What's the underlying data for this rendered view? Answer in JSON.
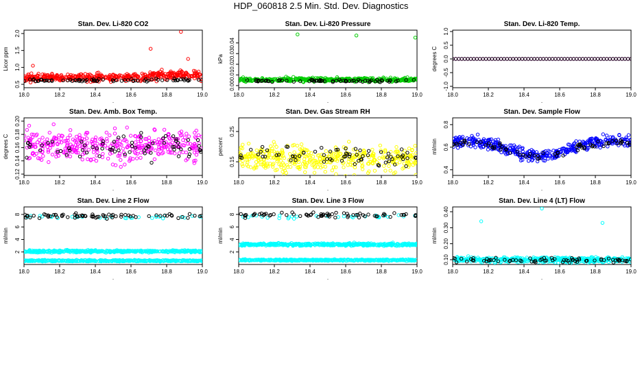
{
  "figure": {
    "title": "HDP_060818  2.5 Min. Std. Dev. Diagnostics",
    "x_range": [
      18.0,
      19.0
    ],
    "x_ticks": [
      "18.0",
      "18.2",
      "18.4",
      "18.6",
      "18.8",
      "19.0"
    ],
    "x_tick_values": [
      18.0,
      18.2,
      18.4,
      18.6,
      18.8,
      19.0
    ],
    "xlabel": "."
  },
  "colors": {
    "black": "#000000",
    "red": "#ff0000",
    "green": "#00cc00",
    "magenta": "#ff00ff",
    "yellow": "#ffff00",
    "blue": "#0000ff",
    "cyan": "#00ffff"
  },
  "chart_data": [
    {
      "type": "scatter",
      "title": "Stan. Dev. Li-820 CO2",
      "ylabel": "Licor ppm",
      "ylim": [
        0.4,
        2.1
      ],
      "yticks": [
        "0.5",
        "1.0",
        "1.5",
        "2.0"
      ],
      "ytick_values": [
        0.5,
        1.0,
        1.5,
        2.0
      ],
      "series": [
        {
          "name": "primary",
          "color": "red",
          "pattern": "noisy",
          "n": 420,
          "base": 0.7,
          "spread": 0.18,
          "step": {
            "at": 18.7,
            "add": 0.12
          },
          "outliers": [
            [
              18.88,
              2.05
            ],
            [
              18.71,
              1.55
            ],
            [
              18.05,
              1.05
            ],
            [
              18.92,
              1.25
            ]
          ]
        },
        {
          "name": "reference",
          "color": "black",
          "pattern": "noisy",
          "n": 70,
          "base": 0.62,
          "spread": 0.08
        }
      ]
    },
    {
      "type": "scatter",
      "title": "Stan. Dev. Li-820 Pressure",
      "ylabel": "kPa",
      "ylim": [
        -0.002,
        0.052
      ],
      "yticks": [
        "0.00",
        "0.01",
        "0.02",
        "0.03",
        "0.04"
      ],
      "ytick_values": [
        0.0,
        0.01,
        0.02,
        0.03,
        0.04
      ],
      "series": [
        {
          "name": "primary",
          "color": "green",
          "pattern": "noisy",
          "n": 420,
          "base": 0.0055,
          "spread": 0.003,
          "outliers": [
            [
              18.33,
              0.048
            ],
            [
              18.66,
              0.047
            ],
            [
              18.99,
              0.045
            ]
          ]
        },
        {
          "name": "reference",
          "color": "black",
          "pattern": "noisy",
          "n": 70,
          "base": 0.0045,
          "spread": 0.002
        }
      ]
    },
    {
      "type": "scatter",
      "title": "Stan. Dev. Li-820 Temp.",
      "ylabel": "degrees C",
      "ylim": [
        -1.05,
        1.05
      ],
      "yticks": [
        "-1.0",
        "-0.5",
        "0.0",
        "0.5",
        "1.0"
      ],
      "ytick_values": [
        -1.0,
        -0.5,
        0.0,
        0.5,
        1.0
      ],
      "series": [
        {
          "name": "primary",
          "color": "magenta",
          "pattern": "constant",
          "n": 60,
          "base": 0.0,
          "spread": 0.0
        },
        {
          "name": "reference",
          "color": "black",
          "pattern": "constant",
          "n": 60,
          "base": 0.0,
          "spread": 0.0
        }
      ]
    },
    {
      "type": "scatter",
      "title": "Stan. Dev. Amb. Box Temp.",
      "ylabel": "degrees C",
      "ylim": [
        0.118,
        0.205
      ],
      "yticks": [
        "0.12",
        "0.14",
        "0.16",
        "0.18",
        "0.20"
      ],
      "ytick_values": [
        0.12,
        0.14,
        0.16,
        0.18,
        0.2
      ],
      "series": [
        {
          "name": "primary",
          "color": "magenta",
          "pattern": "noisy",
          "n": 380,
          "base": 0.163,
          "spread": 0.04
        },
        {
          "name": "reference",
          "color": "black",
          "pattern": "noisy",
          "n": 70,
          "base": 0.163,
          "spread": 0.04
        }
      ]
    },
    {
      "type": "scatter",
      "title": "Stan. Dev. Gas Stream RH",
      "ylabel": "percent",
      "ylim": [
        0.105,
        0.295
      ],
      "yticks": [
        "0.15",
        "0.25"
      ],
      "ytick_values": [
        0.15,
        0.25
      ],
      "series": [
        {
          "name": "primary",
          "color": "yellow",
          "pattern": "noisy",
          "n": 420,
          "base": 0.16,
          "spread": 0.07
        },
        {
          "name": "reference",
          "color": "black",
          "pattern": "noisy",
          "n": 70,
          "base": 0.17,
          "spread": 0.06
        }
      ]
    },
    {
      "type": "scatter",
      "title": "Stan. Dev. Sample Flow",
      "ylabel": "ml/min",
      "ylim": [
        0.35,
        0.86
      ],
      "yticks": [
        "0.4",
        "0.6",
        "0.8"
      ],
      "ytick_values": [
        0.4,
        0.6,
        0.8
      ],
      "series": [
        {
          "name": "primary",
          "color": "blue",
          "pattern": "dip",
          "n": 420,
          "base": 0.66,
          "spread": 0.09,
          "dip": {
            "center": 18.48,
            "width": 0.22,
            "depth": 0.14
          }
        },
        {
          "name": "reference",
          "color": "black",
          "pattern": "dip",
          "n": 70,
          "base": 0.64,
          "spread": 0.06,
          "dip": {
            "center": 18.48,
            "width": 0.22,
            "depth": 0.12
          }
        }
      ]
    },
    {
      "type": "scatter",
      "title": "Stan. Dev. Line 2 Flow",
      "ylabel": "ml/min",
      "ylim": [
        0.0,
        9.2
      ],
      "yticks": [
        "2",
        "4",
        "6",
        "8"
      ],
      "ytick_values": [
        2,
        4,
        6,
        8
      ],
      "series": [
        {
          "name": "primary-low",
          "color": "cyan",
          "pattern": "noisy",
          "n": 420,
          "base": 0.6,
          "spread": 0.2
        },
        {
          "name": "primary-mid",
          "color": "cyan",
          "pattern": "noisy",
          "n": 420,
          "base": 2.1,
          "spread": 0.3
        },
        {
          "name": "primary-top",
          "color": "cyan",
          "pattern": "noisy",
          "n": 30,
          "base": 7.6,
          "spread": 0.6
        },
        {
          "name": "reference",
          "color": "black",
          "pattern": "noisy",
          "n": 70,
          "base": 7.8,
          "spread": 0.6
        }
      ]
    },
    {
      "type": "scatter",
      "title": "Stan. Dev. Line 3 Flow",
      "ylabel": "ml/min",
      "ylim": [
        0.0,
        9.2
      ],
      "yticks": [
        "2",
        "4",
        "6",
        "8"
      ],
      "ytick_values": [
        2,
        4,
        6,
        8
      ],
      "series": [
        {
          "name": "primary-low",
          "color": "cyan",
          "pattern": "noisy",
          "n": 420,
          "base": 0.7,
          "spread": 0.2
        },
        {
          "name": "primary-mid",
          "color": "cyan",
          "pattern": "noisy",
          "n": 420,
          "base": 3.2,
          "spread": 0.35
        },
        {
          "name": "primary-top",
          "color": "cyan",
          "pattern": "noisy",
          "n": 30,
          "base": 7.6,
          "spread": 0.6
        },
        {
          "name": "reference",
          "color": "black",
          "pattern": "noisy",
          "n": 70,
          "base": 7.9,
          "spread": 0.6
        }
      ]
    },
    {
      "type": "scatter",
      "title": "Stan. Dev. Line 4 (LT) Flow",
      "ylabel": "ml/min",
      "ylim": [
        0.07,
        0.43
      ],
      "yticks": [
        "0.10",
        "0.20",
        "0.30",
        "0.40"
      ],
      "ytick_values": [
        0.1,
        0.2,
        0.3,
        0.4
      ],
      "series": [
        {
          "name": "primary",
          "color": "cyan",
          "pattern": "noisy",
          "n": 420,
          "base": 0.1,
          "spread": 0.03,
          "outliers": [
            [
              18.16,
              0.34
            ],
            [
              18.5,
              0.42
            ],
            [
              18.84,
              0.33
            ]
          ]
        },
        {
          "name": "reference",
          "color": "black",
          "pattern": "noisy",
          "n": 70,
          "base": 0.098,
          "spread": 0.025
        }
      ]
    }
  ]
}
